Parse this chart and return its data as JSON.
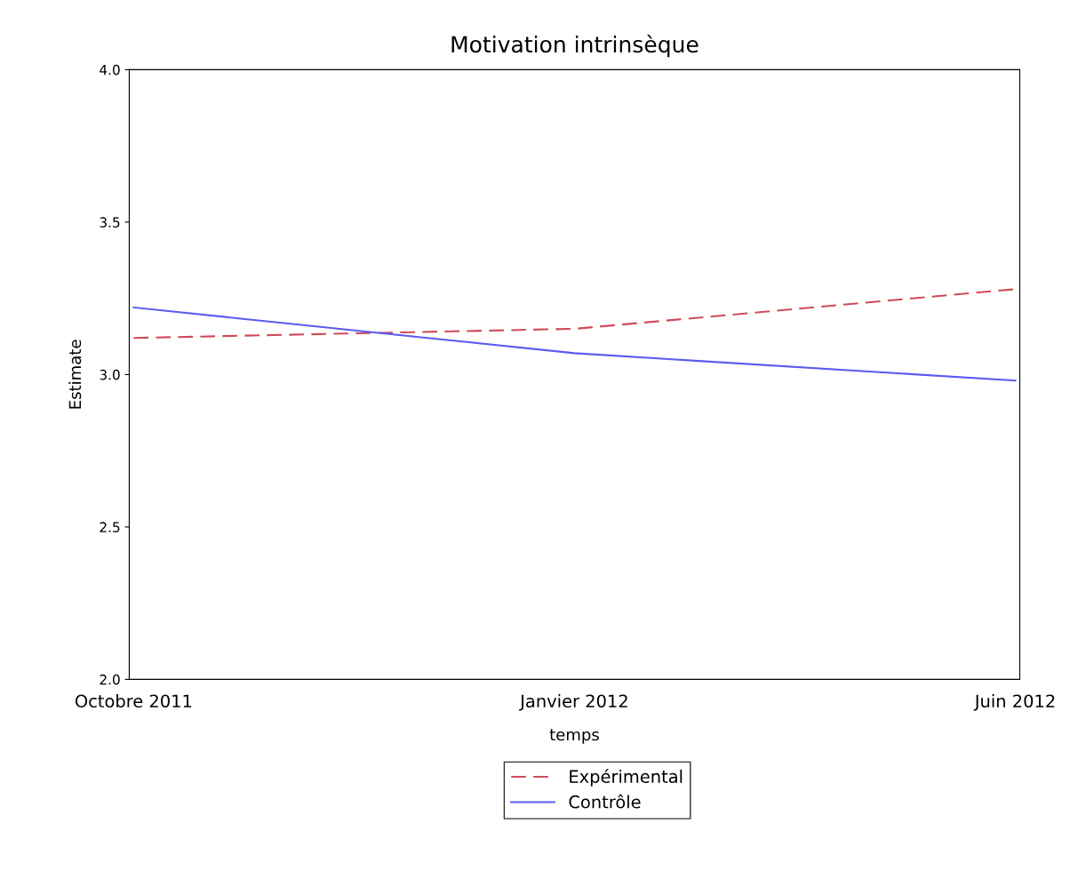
{
  "chart_data": {
    "type": "line",
    "title": "Motivation intrinsèque",
    "xlabel": "temps",
    "ylabel": "Estimate",
    "categories": [
      "Octobre 2011",
      "Janvier 2012",
      "Juin 2012"
    ],
    "series": [
      {
        "name": "Expérimental",
        "color": "#d04a5a",
        "values": [
          3.12,
          3.15,
          3.28
        ],
        "line_style": "dashed"
      },
      {
        "name": "Contrôle",
        "color": "#5a5af0",
        "values": [
          3.22,
          3.07,
          2.98
        ],
        "line_style": "solid"
      }
    ],
    "ylim": [
      2.0,
      4.0
    ],
    "yticks": [
      {
        "value": 2.0,
        "label": "2.0"
      },
      {
        "value": 2.5,
        "label": "2.5"
      },
      {
        "value": 3.0,
        "label": "3.0"
      },
      {
        "value": 3.5,
        "label": "3.5"
      },
      {
        "value": 4.0,
        "label": "4.0"
      }
    ],
    "grid": false,
    "legend": "bottom",
    "marker": "none"
  }
}
